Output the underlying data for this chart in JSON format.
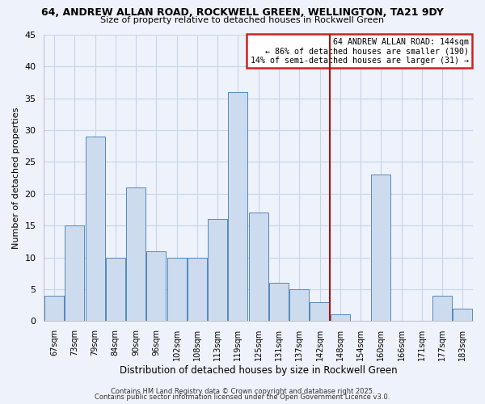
{
  "title1": "64, ANDREW ALLAN ROAD, ROCKWELL GREEN, WELLINGTON, TA21 9DY",
  "title2": "Size of property relative to detached houses in Rockwell Green",
  "xlabel": "Distribution of detached houses by size in Rockwell Green",
  "ylabel": "Number of detached properties",
  "categories": [
    "67sqm",
    "73sqm",
    "79sqm",
    "84sqm",
    "90sqm",
    "96sqm",
    "102sqm",
    "108sqm",
    "113sqm",
    "119sqm",
    "125sqm",
    "131sqm",
    "137sqm",
    "142sqm",
    "148sqm",
    "154sqm",
    "160sqm",
    "166sqm",
    "171sqm",
    "177sqm",
    "183sqm"
  ],
  "values": [
    4,
    15,
    29,
    10,
    21,
    11,
    10,
    10,
    16,
    36,
    17,
    6,
    5,
    3,
    1,
    0,
    23,
    0,
    0,
    4,
    2
  ],
  "bar_color": "#ccdcee",
  "bar_edge_color": "#5588bb",
  "background_color": "#eef2fa",
  "grid_color": "#c8d4e8",
  "ylim": [
    0,
    45
  ],
  "yticks": [
    0,
    5,
    10,
    15,
    20,
    25,
    30,
    35,
    40,
    45
  ],
  "vline_color": "#aa1111",
  "annotation_title": "64 ANDREW ALLAN ROAD: 144sqm",
  "annotation_line1": "← 86% of detached houses are smaller (190)",
  "annotation_line2": "14% of semi-detached houses are larger (31) →",
  "annotation_box_color": "#cc2222",
  "footer1": "Contains HM Land Registry data © Crown copyright and database right 2025.",
  "footer2": "Contains public sector information licensed under the Open Government Licence v3.0."
}
